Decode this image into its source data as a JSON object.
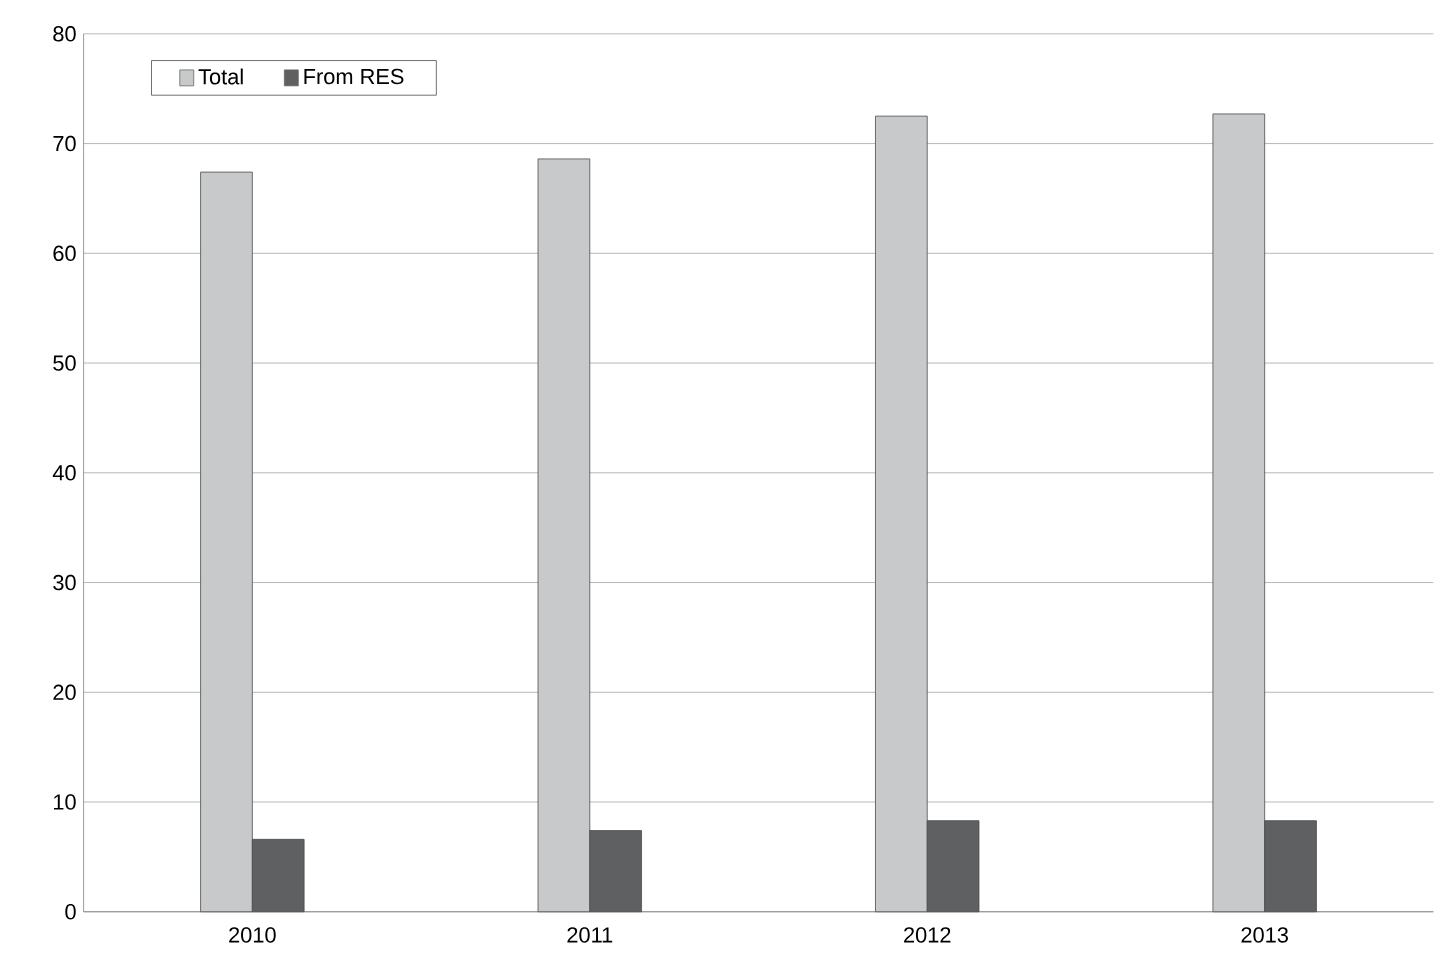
{
  "chart_data": {
    "type": "bar",
    "categories": [
      "2010",
      "2011",
      "2012",
      "2013"
    ],
    "series": [
      {
        "name": "Total",
        "color": "#c8c9cb",
        "values": [
          67.4,
          68.6,
          72.5,
          72.7
        ]
      },
      {
        "name": "From RES",
        "color": "#5f6062",
        "values": [
          6.6,
          7.4,
          8.3,
          8.3
        ]
      }
    ],
    "ylim": [
      0,
      80
    ],
    "yticks": [
      0,
      10,
      20,
      30,
      40,
      50,
      60,
      70,
      80
    ],
    "grid": "y",
    "legend": "top left"
  }
}
